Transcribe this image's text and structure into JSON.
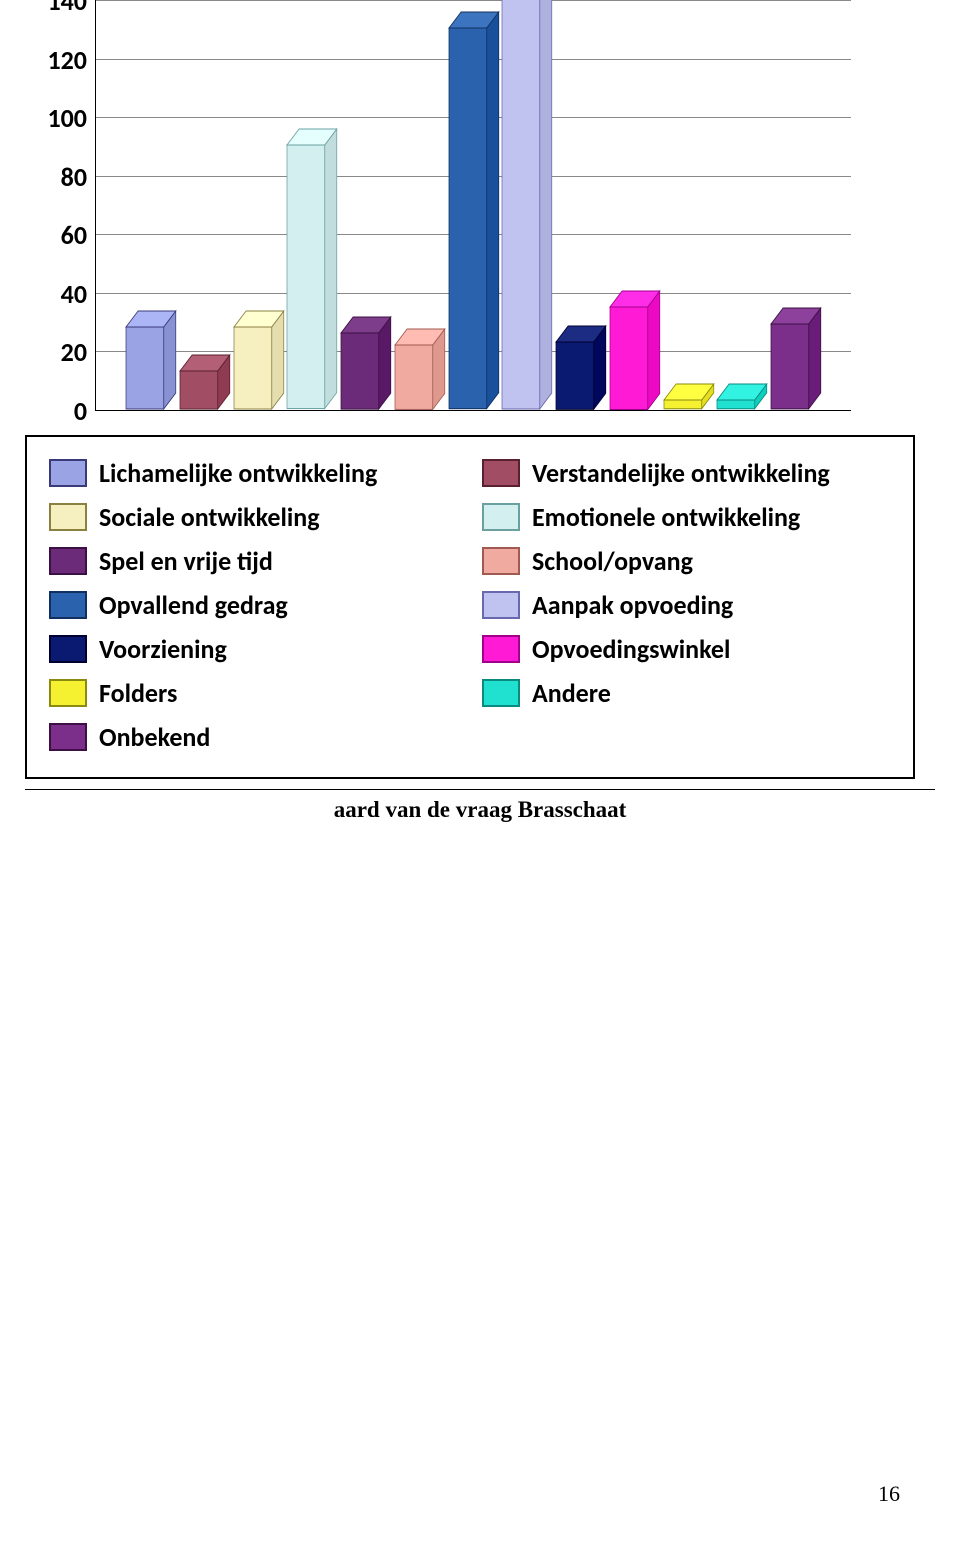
{
  "chart": {
    "type": "bar",
    "ylim": [
      0,
      140
    ],
    "ytick_step": 20,
    "tick_fontsize": 26,
    "grid_color": "#888888",
    "axis_color": "#000000",
    "plot_bg": "#ffffff",
    "bar_depth": 16,
    "bar_gap": 4,
    "series": [
      {
        "label": "Lichamelijke ontwikkeling",
        "value": 28,
        "fill": "#9aa3e4",
        "stroke": "#3a3a7a"
      },
      {
        "label": "Verstandelijke ontwikkeling",
        "value": 13,
        "fill": "#a14d63",
        "stroke": "#5a2030"
      },
      {
        "label": "Sociale ontwikkeling",
        "value": 28,
        "fill": "#f6f0c0",
        "stroke": "#8a8040"
      },
      {
        "label": "Emotionele ontwikkeling",
        "value": 90,
        "fill": "#d3efef",
        "stroke": "#6aa0a0"
      },
      {
        "label": "Spel en vrije tijd",
        "value": 26,
        "fill": "#6b2b78",
        "stroke": "#3c1044"
      },
      {
        "label": "School/opvang",
        "value": 22,
        "fill": "#f0aaa0",
        "stroke": "#a05a50"
      },
      {
        "label": "Opvallend gedrag",
        "value": 130,
        "fill": "#2a62ae",
        "stroke": "#103060"
      },
      {
        "label": "Aanpak opvoeding",
        "value": 140,
        "fill": "#c0c2f0",
        "stroke": "#6868b0"
      },
      {
        "label": "Voorziening",
        "value": 23,
        "fill": "#0a1a70",
        "stroke": "#000030"
      },
      {
        "label": "Opvoedingswinkel",
        "value": 35,
        "fill": "#ff1ad6",
        "stroke": "#a0008a"
      },
      {
        "label": "Folders",
        "value": 3,
        "fill": "#f5f030",
        "stroke": "#8a8a10"
      },
      {
        "label": "Andere",
        "value": 3,
        "fill": "#20e0d0",
        "stroke": "#0a8a80"
      },
      {
        "label": "Onbekend",
        "value": 29,
        "fill": "#7b2e8a",
        "stroke": "#3c1044"
      }
    ]
  },
  "legend": {
    "border_color": "#000000",
    "fontsize": 26,
    "items_col1": [
      "Lichamelijke ontwikkeling",
      "Sociale ontwikkeling",
      "Spel en vrije tijd",
      "Opvallend gedrag",
      "Voorziening",
      "Folders",
      "Onbekend"
    ],
    "items_col2": [
      "Verstandelijke ontwikkeling",
      "Emotionele ontwikkeling",
      "School/opvang",
      "Aanpak opvoeding",
      "Opvoedingswinkel",
      "Andere"
    ]
  },
  "caption": "aard van de vraag Brasschaat",
  "caption_fontsize": 23,
  "page_number": "16"
}
